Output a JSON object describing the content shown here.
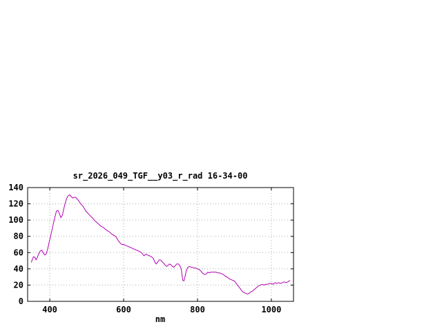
{
  "window": {
    "background": "#ffffff"
  },
  "chart_data": {
    "type": "line",
    "title": "sr_2026_049_TGF__y03_r_rad 16-34-00",
    "xlabel": "nm",
    "ylabel": "",
    "xlim": [
      340,
      1060
    ],
    "ylim": [
      0,
      140
    ],
    "xticks": [
      400,
      600,
      800,
      1000
    ],
    "yticks": [
      0,
      20,
      40,
      60,
      80,
      100,
      120,
      140
    ],
    "grid": true,
    "legend": "none",
    "line_color": "#b000b0",
    "grid_color": "#aaaaaa",
    "axis_color": "#000000",
    "series": [
      {
        "name": "sr_2026_049_TGF__y03_r_rad",
        "points": [
          [
            350,
            48
          ],
          [
            353,
            52
          ],
          [
            356,
            55
          ],
          [
            360,
            54
          ],
          [
            363,
            51
          ],
          [
            366,
            54
          ],
          [
            370,
            58
          ],
          [
            374,
            62
          ],
          [
            378,
            63
          ],
          [
            382,
            60
          ],
          [
            386,
            57
          ],
          [
            390,
            58
          ],
          [
            394,
            64
          ],
          [
            398,
            72
          ],
          [
            402,
            80
          ],
          [
            406,
            88
          ],
          [
            410,
            96
          ],
          [
            414,
            104
          ],
          [
            418,
            111
          ],
          [
            422,
            112
          ],
          [
            426,
            108
          ],
          [
            430,
            103
          ],
          [
            434,
            106
          ],
          [
            438,
            114
          ],
          [
            442,
            121
          ],
          [
            446,
            127
          ],
          [
            450,
            130
          ],
          [
            454,
            131
          ],
          [
            458,
            129
          ],
          [
            462,
            127
          ],
          [
            466,
            128
          ],
          [
            470,
            128
          ],
          [
            474,
            126
          ],
          [
            478,
            124
          ],
          [
            482,
            121
          ],
          [
            486,
            119
          ],
          [
            490,
            117
          ],
          [
            494,
            114
          ],
          [
            498,
            111
          ],
          [
            502,
            109
          ],
          [
            506,
            107
          ],
          [
            510,
            105
          ],
          [
            515,
            103
          ],
          [
            520,
            100
          ],
          [
            525,
            98
          ],
          [
            530,
            96
          ],
          [
            535,
            94
          ],
          [
            540,
            92
          ],
          [
            545,
            91
          ],
          [
            550,
            89
          ],
          [
            555,
            87
          ],
          [
            560,
            86
          ],
          [
            565,
            84
          ],
          [
            570,
            82
          ],
          [
            575,
            81
          ],
          [
            580,
            79
          ],
          [
            585,
            75
          ],
          [
            590,
            72
          ],
          [
            595,
            70
          ],
          [
            600,
            70
          ],
          [
            605,
            69
          ],
          [
            610,
            68
          ],
          [
            615,
            67
          ],
          [
            620,
            66
          ],
          [
            625,
            65
          ],
          [
            630,
            64
          ],
          [
            635,
            63
          ],
          [
            640,
            62
          ],
          [
            645,
            61
          ],
          [
            650,
            59
          ],
          [
            655,
            56
          ],
          [
            660,
            58
          ],
          [
            665,
            57
          ],
          [
            670,
            56
          ],
          [
            675,
            55
          ],
          [
            680,
            53
          ],
          [
            685,
            48
          ],
          [
            688,
            46
          ],
          [
            692,
            48
          ],
          [
            696,
            51
          ],
          [
            700,
            51
          ],
          [
            704,
            49
          ],
          [
            708,
            47
          ],
          [
            712,
            45
          ],
          [
            716,
            43
          ],
          [
            720,
            44
          ],
          [
            724,
            46
          ],
          [
            728,
            45
          ],
          [
            732,
            43
          ],
          [
            736,
            42
          ],
          [
            740,
            44
          ],
          [
            744,
            46
          ],
          [
            748,
            46
          ],
          [
            752,
            44
          ],
          [
            756,
            40
          ],
          [
            760,
            26
          ],
          [
            763,
            25
          ],
          [
            766,
            30
          ],
          [
            770,
            38
          ],
          [
            774,
            42
          ],
          [
            778,
            43
          ],
          [
            782,
            42
          ],
          [
            786,
            42
          ],
          [
            790,
            41
          ],
          [
            795,
            41
          ],
          [
            800,
            40
          ],
          [
            805,
            39
          ],
          [
            810,
            37
          ],
          [
            815,
            34
          ],
          [
            820,
            33
          ],
          [
            825,
            34
          ],
          [
            828,
            36
          ],
          [
            832,
            35
          ],
          [
            836,
            36
          ],
          [
            840,
            36
          ],
          [
            845,
            36
          ],
          [
            850,
            36
          ],
          [
            855,
            35
          ],
          [
            860,
            35
          ],
          [
            865,
            34
          ],
          [
            870,
            33
          ],
          [
            875,
            31
          ],
          [
            880,
            30
          ],
          [
            885,
            28
          ],
          [
            890,
            27
          ],
          [
            895,
            26
          ],
          [
            900,
            25
          ],
          [
            905,
            22
          ],
          [
            910,
            19
          ],
          [
            915,
            16
          ],
          [
            920,
            13
          ],
          [
            925,
            11
          ],
          [
            930,
            10
          ],
          [
            935,
            9
          ],
          [
            940,
            10
          ],
          [
            945,
            12
          ],
          [
            950,
            13
          ],
          [
            955,
            15
          ],
          [
            960,
            17
          ],
          [
            965,
            19
          ],
          [
            970,
            20
          ],
          [
            975,
            21
          ],
          [
            980,
            20
          ],
          [
            985,
            21
          ],
          [
            990,
            21
          ],
          [
            995,
            22
          ],
          [
            1000,
            22
          ],
          [
            1005,
            21
          ],
          [
            1010,
            23
          ],
          [
            1015,
            22
          ],
          [
            1020,
            23
          ],
          [
            1025,
            22
          ],
          [
            1030,
            23
          ],
          [
            1035,
            24
          ],
          [
            1040,
            23
          ],
          [
            1045,
            24
          ],
          [
            1050,
            26
          ]
        ]
      }
    ]
  }
}
